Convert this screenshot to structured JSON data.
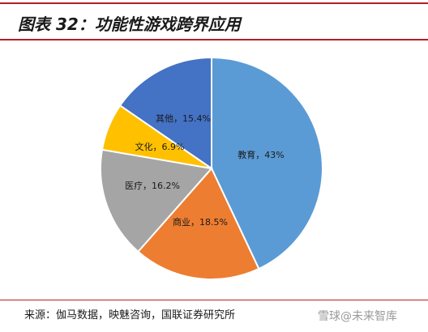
{
  "header": {
    "title": "图表 32：功能性游戏跨界应用"
  },
  "chart_data": {
    "type": "pie",
    "title": "",
    "slices": [
      {
        "label": "教育，43%",
        "category": "教育",
        "value": 43,
        "color": "#5b9bd5"
      },
      {
        "label": "商业，18.5%",
        "category": "商业",
        "value": 18.5,
        "color": "#ed7d31"
      },
      {
        "label": "医疗，16.2%",
        "category": "医疗",
        "value": 16.2,
        "color": "#a5a5a5"
      },
      {
        "label": "文化，6.9%",
        "category": "文化",
        "value": 6.9,
        "color": "#ffc000"
      },
      {
        "label": "其他，15.4%",
        "category": "其他",
        "value": 15.4,
        "color": "#4472c4"
      }
    ],
    "start": "12 o'clock",
    "direction": "clockwise",
    "legend": "none"
  },
  "footer": {
    "source": "来源：伽马数据，映魅咨询，国联证券研究所",
    "watermark": "雪球@未来智库"
  }
}
